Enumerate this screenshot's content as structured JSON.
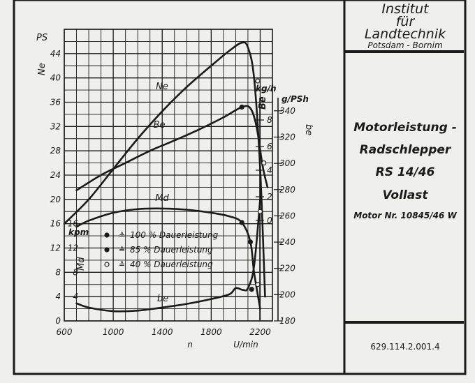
{
  "institute": {
    "line1": "Institut",
    "line2": "für",
    "line3": "Landtechnik",
    "line4": "Potsdam - Bornim"
  },
  "panel": {
    "title1": "Motorleistung -",
    "title2": "Radschlepper",
    "model": "RS 14/46",
    "load": "Vollast",
    "motor": "Motor Nr. 10845/46 W",
    "catalog": "629.114.2.001.4"
  },
  "colors": {
    "paper": "#efefec",
    "ink": "#1a1a1a",
    "frame": "#0f0f0f"
  },
  "chart_data": {
    "type": "line",
    "x": {
      "label_symbol": "n",
      "label_unit": "U/min",
      "range": [
        600,
        2300
      ],
      "ticks": [
        600,
        1000,
        1400,
        1800,
        2200
      ]
    },
    "axes": {
      "ne": {
        "unit": "PS",
        "symbol": "Ne",
        "range": [
          0,
          48
        ],
        "ticks": [
          0,
          4,
          8,
          12,
          16,
          20,
          24,
          28,
          32,
          36,
          40,
          44
        ]
      },
      "md": {
        "unit": "kpm",
        "symbol": "Md",
        "range": [
          0,
          48
        ],
        "ticks": [
          4,
          8,
          12,
          16
        ]
      },
      "Be": {
        "unit": "kg/h",
        "symbol": "Be",
        "ticks": [
          0,
          2,
          4,
          6,
          8
        ]
      },
      "be": {
        "unit": "g/PSh",
        "symbol": "be",
        "range": [
          180,
          350
        ],
        "ticks": [
          180,
          200,
          220,
          240,
          260,
          280,
          300,
          320,
          340
        ]
      }
    },
    "series": [
      {
        "name": "Ne",
        "x": [
          600,
          800,
          1000,
          1200,
          1400,
          1600,
          1800,
          1950,
          2050,
          2100,
          2150,
          2200,
          2240
        ],
        "y": [
          16,
          20,
          25,
          30,
          34.5,
          38.5,
          42,
          44.5,
          45.8,
          45,
          40,
          25,
          4
        ]
      },
      {
        "name": "Be",
        "x": [
          700,
          900,
          1100,
          1300,
          1500,
          1700,
          1900,
          2050,
          2120,
          2170,
          2220,
          2260
        ],
        "y": [
          21.5,
          24,
          26,
          28,
          29.7,
          31.5,
          33.5,
          35.2,
          35,
          32,
          25.5,
          22
        ]
      },
      {
        "name": "Md",
        "x": [
          700,
          800,
          1000,
          1200,
          1400,
          1600,
          1800,
          1950,
          2050,
          2120,
          2150,
          2200
        ],
        "y": [
          15.5,
          16.5,
          17.8,
          18.4,
          18.5,
          18.3,
          17.8,
          17.2,
          16.2,
          13,
          8,
          2
        ]
      },
      {
        "name": "be",
        "x": [
          700,
          800,
          1000,
          1200,
          1400,
          1600,
          1800,
          1950,
          2000,
          2060,
          2100,
          2150,
          2200
        ],
        "y": [
          2.9,
          2.2,
          1.6,
          1.7,
          2.2,
          2.8,
          3.6,
          4.4,
          5.4,
          5.1,
          5.4,
          9,
          20
        ]
      }
    ],
    "markers": [
      {
        "type": "filled",
        "x": 2050,
        "y": 35.2
      },
      {
        "type": "filled",
        "x": 2050,
        "y": 16.2
      },
      {
        "type": "filled",
        "x": 2120,
        "y": 13
      },
      {
        "type": "filled",
        "x": 2130,
        "y": 5.2
      },
      {
        "type": "open",
        "x": 2180,
        "y": 39.5
      },
      {
        "type": "open",
        "x": 2230,
        "y": 26
      },
      {
        "type": "open",
        "x": 2200,
        "y": 18
      },
      {
        "type": "open",
        "x": 2180,
        "y": 6
      }
    ],
    "legend": [
      {
        "marker": "filled",
        "text": "100 % Dauerleistung"
      },
      {
        "marker": "filled",
        "text": "85 % Dauerleistung"
      },
      {
        "marker": "open",
        "text": "40 % Dauerleistung"
      }
    ]
  }
}
